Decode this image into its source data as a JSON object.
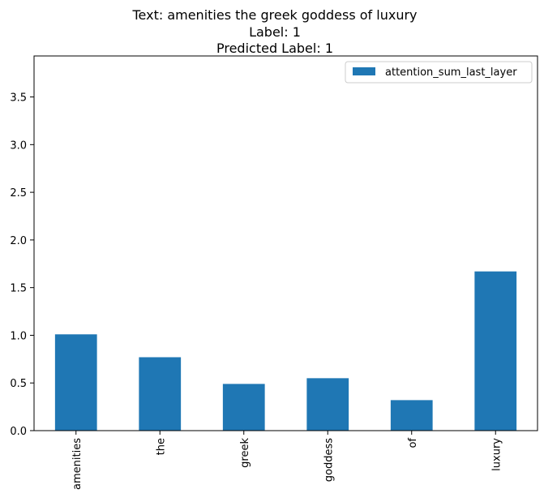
{
  "chart_data": {
    "type": "bar",
    "title_lines": [
      "Text: amenities the greek goddess of luxury",
      "Label: 1",
      "Predicted Label: 1"
    ],
    "xlabel": "",
    "ylabel": "",
    "categories": [
      "amenities",
      "the",
      "greek",
      "goddess",
      "of",
      "luxury"
    ],
    "series": [
      {
        "name": "attention_sum_last_layer",
        "color": "#1f77b4",
        "values": [
          1.01,
          0.77,
          0.49,
          0.55,
          0.32,
          1.67
        ]
      }
    ],
    "ylim": [
      0,
      3.93
    ],
    "yticks": [
      "0.0",
      "0.5",
      "1.0",
      "1.5",
      "2.0",
      "2.5",
      "3.0",
      "3.5"
    ],
    "grid": false,
    "legend_position": "top-right"
  }
}
